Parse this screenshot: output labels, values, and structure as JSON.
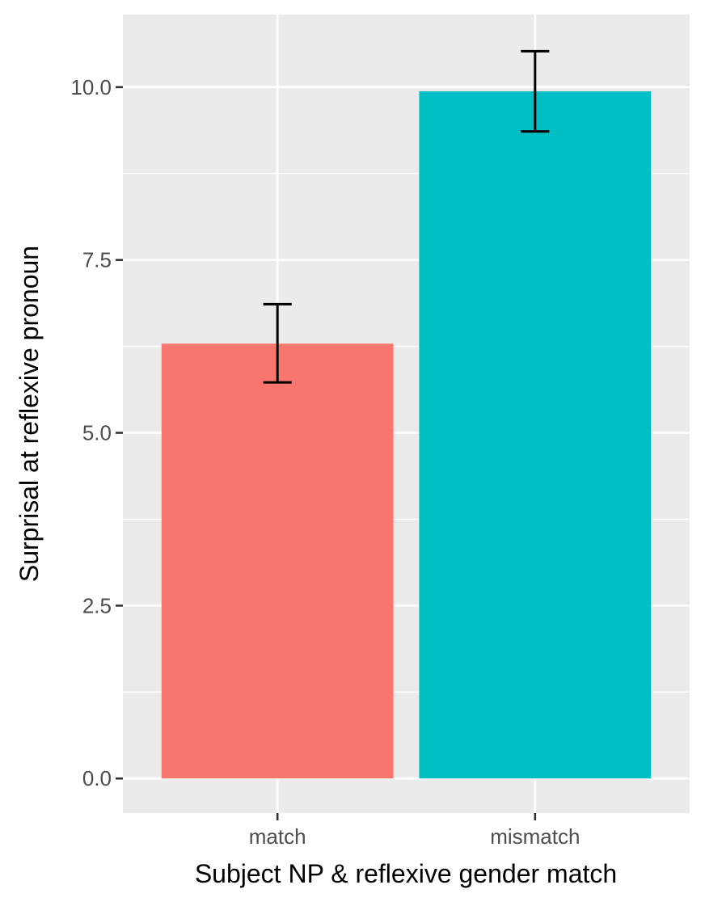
{
  "chart_data": {
    "type": "bar",
    "title": "",
    "xlabel": "Subject NP & reflexive gender match",
    "ylabel": "Surprisal at reflexive pronoun",
    "categories": [
      "match",
      "mismatch"
    ],
    "values": [
      6.29,
      9.94
    ],
    "error_bars": [
      {
        "lower": 5.73,
        "upper": 6.86
      },
      {
        "lower": 9.36,
        "upper": 10.52
      }
    ],
    "bar_colors": [
      "#F8766D",
      "#00BFC4"
    ],
    "ylim": [
      -0.5,
      11.05
    ],
    "y_major_ticks": [
      0.0,
      2.5,
      5.0,
      7.5,
      10.0
    ],
    "y_tick_labels": [
      "0.0",
      "2.5",
      "5.0",
      "7.5",
      "10.0"
    ],
    "y_minor_ticks": [
      1.25,
      3.75,
      6.25,
      8.75
    ],
    "grid": true,
    "panel_background": "#EBEBEB",
    "gridline_color": "#FFFFFF",
    "legend": "none"
  }
}
